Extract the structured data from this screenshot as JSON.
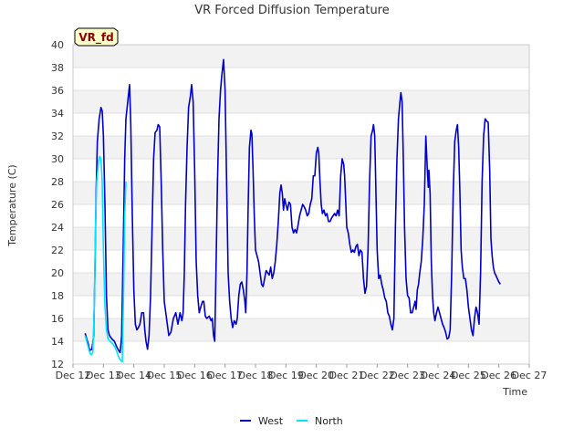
{
  "chart_data": {
    "type": "line",
    "title": "VR Forced Diffusion Temperature",
    "xlabel": "Time",
    "ylabel": "Temperature (C)",
    "badge": "VR_fd",
    "ylim": [
      12,
      40
    ],
    "xlim": [
      12,
      27
    ],
    "x_unit": "day of December",
    "x_ticks": [
      12,
      13,
      14,
      15,
      16,
      17,
      18,
      19,
      20,
      21,
      22,
      23,
      24,
      25,
      26,
      27
    ],
    "x_tick_labels": [
      "Dec 12",
      "Dec 13",
      "Dec 14",
      "Dec 15",
      "Dec 16",
      "Dec 17",
      "Dec 18",
      "Dec 19",
      "Dec 20",
      "Dec 21",
      "Dec 22",
      "Dec 23",
      "Dec 24",
      "Dec 25",
      "Dec 26",
      "Dec 27"
    ],
    "y_ticks": [
      12,
      14,
      16,
      18,
      20,
      22,
      24,
      26,
      28,
      30,
      32,
      34,
      36,
      38,
      40
    ],
    "grid": true,
    "legend_position": "bottom-center",
    "series": [
      {
        "name": "West",
        "color": "#0000cc",
        "points": [
          [
            12.4,
            14.7
          ],
          [
            12.45,
            14.2
          ],
          [
            12.5,
            13.8
          ],
          [
            12.55,
            13.2
          ],
          [
            12.62,
            13.3
          ],
          [
            12.68,
            14.5
          ],
          [
            12.72,
            20.0
          ],
          [
            12.76,
            27.0
          ],
          [
            12.8,
            31.5
          ],
          [
            12.86,
            33.5
          ],
          [
            12.92,
            34.5
          ],
          [
            12.96,
            34.2
          ],
          [
            13.0,
            32.0
          ],
          [
            13.05,
            26.0
          ],
          [
            13.1,
            18.0
          ],
          [
            13.15,
            15.0
          ],
          [
            13.2,
            14.5
          ],
          [
            13.28,
            14.2
          ],
          [
            13.36,
            14.0
          ],
          [
            13.44,
            13.5
          ],
          [
            13.5,
            13.2
          ],
          [
            13.55,
            13.0
          ],
          [
            13.6,
            14.5
          ],
          [
            13.65,
            22.0
          ],
          [
            13.7,
            30.0
          ],
          [
            13.74,
            33.5
          ],
          [
            13.8,
            35.0
          ],
          [
            13.86,
            36.5
          ],
          [
            13.9,
            33.0
          ],
          [
            13.95,
            25.0
          ],
          [
            14.0,
            18.5
          ],
          [
            14.05,
            15.5
          ],
          [
            14.1,
            15.0
          ],
          [
            14.15,
            15.2
          ],
          [
            14.2,
            15.5
          ],
          [
            14.26,
            16.5
          ],
          [
            14.32,
            16.5
          ],
          [
            14.36,
            15.0
          ],
          [
            14.4,
            14.0
          ],
          [
            14.45,
            13.3
          ],
          [
            14.5,
            14.5
          ],
          [
            14.55,
            18.0
          ],
          [
            14.6,
            24.0
          ],
          [
            14.65,
            30.0
          ],
          [
            14.7,
            32.3
          ],
          [
            14.76,
            32.5
          ],
          [
            14.8,
            33.0
          ],
          [
            14.85,
            32.8
          ],
          [
            14.9,
            28.0
          ],
          [
            14.95,
            22.0
          ],
          [
            15.0,
            17.5
          ],
          [
            15.05,
            16.5
          ],
          [
            15.1,
            15.5
          ],
          [
            15.15,
            14.5
          ],
          [
            15.22,
            14.8
          ],
          [
            15.3,
            16.0
          ],
          [
            15.38,
            16.5
          ],
          [
            15.45,
            15.5
          ],
          [
            15.52,
            16.5
          ],
          [
            15.58,
            15.8
          ],
          [
            15.62,
            16.5
          ],
          [
            15.66,
            20.0
          ],
          [
            15.7,
            26.0
          ],
          [
            15.75,
            31.0
          ],
          [
            15.8,
            34.5
          ],
          [
            15.86,
            35.5
          ],
          [
            15.9,
            36.5
          ],
          [
            15.95,
            35.0
          ],
          [
            16.0,
            29.0
          ],
          [
            16.05,
            21.0
          ],
          [
            16.1,
            18.0
          ],
          [
            16.15,
            16.5
          ],
          [
            16.2,
            17.0
          ],
          [
            16.26,
            17.5
          ],
          [
            16.3,
            17.5
          ],
          [
            16.35,
            16.2
          ],
          [
            16.4,
            16.0
          ],
          [
            16.48,
            16.2
          ],
          [
            16.54,
            15.8
          ],
          [
            16.58,
            16.0
          ],
          [
            16.62,
            14.5
          ],
          [
            16.66,
            14.0
          ],
          [
            16.7,
            20.0
          ],
          [
            16.75,
            28.0
          ],
          [
            16.8,
            33.5
          ],
          [
            16.85,
            36.0
          ],
          [
            16.9,
            37.5
          ],
          [
            16.95,
            38.7
          ],
          [
            17.0,
            36.0
          ],
          [
            17.05,
            28.0
          ],
          [
            17.1,
            20.0
          ],
          [
            17.15,
            17.5
          ],
          [
            17.2,
            16.0
          ],
          [
            17.25,
            15.2
          ],
          [
            17.3,
            15.8
          ],
          [
            17.36,
            15.5
          ],
          [
            17.4,
            16.0
          ],
          [
            17.45,
            18.0
          ],
          [
            17.5,
            19.0
          ],
          [
            17.55,
            19.2
          ],
          [
            17.6,
            18.5
          ],
          [
            17.65,
            17.5
          ],
          [
            17.68,
            16.5
          ],
          [
            17.72,
            20.0
          ],
          [
            17.76,
            26.0
          ],
          [
            17.8,
            31.0
          ],
          [
            17.85,
            32.5
          ],
          [
            17.88,
            32.2
          ],
          [
            17.92,
            29.0
          ],
          [
            17.96,
            25.0
          ],
          [
            18.0,
            22.0
          ],
          [
            18.05,
            21.5
          ],
          [
            18.1,
            21.0
          ],
          [
            18.15,
            20.0
          ],
          [
            18.2,
            19.0
          ],
          [
            18.25,
            18.8
          ],
          [
            18.3,
            19.5
          ],
          [
            18.35,
            20.2
          ],
          [
            18.4,
            20.0
          ],
          [
            18.45,
            19.8
          ],
          [
            18.5,
            20.5
          ],
          [
            18.55,
            19.5
          ],
          [
            18.6,
            20.0
          ],
          [
            18.65,
            21.0
          ],
          [
            18.7,
            22.5
          ],
          [
            18.75,
            24.5
          ],
          [
            18.8,
            27.0
          ],
          [
            18.84,
            27.7
          ],
          [
            18.88,
            27.0
          ],
          [
            18.92,
            25.5
          ],
          [
            18.96,
            26.5
          ],
          [
            19.0,
            26.0
          ],
          [
            19.05,
            25.5
          ],
          [
            19.1,
            26.2
          ],
          [
            19.15,
            26.0
          ],
          [
            19.2,
            24.0
          ],
          [
            19.25,
            23.5
          ],
          [
            19.3,
            23.8
          ],
          [
            19.35,
            23.5
          ],
          [
            19.4,
            24.2
          ],
          [
            19.45,
            25.0
          ],
          [
            19.5,
            25.5
          ],
          [
            19.55,
            26.0
          ],
          [
            19.6,
            25.8
          ],
          [
            19.65,
            25.5
          ],
          [
            19.7,
            25.0
          ],
          [
            19.75,
            25.2
          ],
          [
            19.8,
            26.0
          ],
          [
            19.85,
            26.5
          ],
          [
            19.9,
            28.5
          ],
          [
            19.95,
            28.5
          ],
          [
            20.0,
            30.5
          ],
          [
            20.05,
            31.0
          ],
          [
            20.08,
            30.5
          ],
          [
            20.12,
            28.0
          ],
          [
            20.16,
            26.0
          ],
          [
            20.2,
            25.2
          ],
          [
            20.25,
            25.5
          ],
          [
            20.3,
            25.0
          ],
          [
            20.35,
            25.2
          ],
          [
            20.4,
            24.5
          ],
          [
            20.45,
            24.5
          ],
          [
            20.5,
            24.8
          ],
          [
            20.55,
            25.0
          ],
          [
            20.6,
            25.2
          ],
          [
            20.65,
            25.0
          ],
          [
            20.7,
            25.5
          ],
          [
            20.75,
            25.0
          ],
          [
            20.8,
            28.5
          ],
          [
            20.85,
            30.0
          ],
          [
            20.9,
            29.5
          ],
          [
            20.93,
            28.5
          ],
          [
            20.97,
            26.0
          ],
          [
            21.0,
            24.0
          ],
          [
            21.05,
            23.5
          ],
          [
            21.1,
            22.5
          ],
          [
            21.15,
            21.8
          ],
          [
            21.2,
            22.0
          ],
          [
            21.25,
            21.8
          ],
          [
            21.3,
            22.3
          ],
          [
            21.35,
            22.5
          ],
          [
            21.4,
            21.5
          ],
          [
            21.45,
            22.0
          ],
          [
            21.5,
            21.8
          ],
          [
            21.55,
            19.5
          ],
          [
            21.6,
            18.2
          ],
          [
            21.65,
            18.8
          ],
          [
            21.7,
            22.0
          ],
          [
            21.75,
            28.0
          ],
          [
            21.8,
            32.0
          ],
          [
            21.85,
            32.5
          ],
          [
            21.88,
            33.0
          ],
          [
            21.92,
            32.0
          ],
          [
            21.96,
            27.0
          ],
          [
            22.0,
            22.0
          ],
          [
            22.05,
            19.5
          ],
          [
            22.1,
            19.8
          ],
          [
            22.15,
            19.0
          ],
          [
            22.2,
            18.5
          ],
          [
            22.25,
            17.8
          ],
          [
            22.3,
            17.5
          ],
          [
            22.35,
            16.5
          ],
          [
            22.4,
            16.2
          ],
          [
            22.45,
            15.5
          ],
          [
            22.5,
            15.0
          ],
          [
            22.55,
            16.0
          ],
          [
            22.6,
            24.0
          ],
          [
            22.65,
            30.0
          ],
          [
            22.7,
            33.5
          ],
          [
            22.75,
            35.0
          ],
          [
            22.78,
            35.8
          ],
          [
            22.82,
            35.0
          ],
          [
            22.86,
            30.0
          ],
          [
            22.9,
            24.0
          ],
          [
            22.95,
            19.5
          ],
          [
            23.0,
            18.0
          ],
          [
            23.05,
            17.8
          ],
          [
            23.1,
            16.5
          ],
          [
            23.15,
            16.5
          ],
          [
            23.2,
            17.0
          ],
          [
            23.25,
            17.5
          ],
          [
            23.28,
            16.8
          ],
          [
            23.32,
            18.5
          ],
          [
            23.36,
            19.0
          ],
          [
            23.4,
            20.0
          ],
          [
            23.45,
            21.0
          ],
          [
            23.5,
            23.0
          ],
          [
            23.55,
            26.0
          ],
          [
            23.6,
            32.0
          ],
          [
            23.65,
            29.0
          ],
          [
            23.68,
            27.5
          ],
          [
            23.7,
            29.0
          ],
          [
            23.74,
            27.0
          ],
          [
            23.78,
            21.0
          ],
          [
            23.82,
            18.0
          ],
          [
            23.86,
            16.5
          ],
          [
            23.9,
            15.8
          ],
          [
            23.95,
            16.5
          ],
          [
            24.0,
            17.0
          ],
          [
            24.05,
            16.5
          ],
          [
            24.1,
            16.0
          ],
          [
            24.15,
            15.5
          ],
          [
            24.2,
            15.2
          ],
          [
            24.25,
            14.8
          ],
          [
            24.3,
            14.2
          ],
          [
            24.35,
            14.3
          ],
          [
            24.4,
            15.0
          ],
          [
            24.45,
            20.0
          ],
          [
            24.5,
            27.0
          ],
          [
            24.55,
            31.5
          ],
          [
            24.6,
            32.5
          ],
          [
            24.64,
            33.0
          ],
          [
            24.68,
            31.0
          ],
          [
            24.72,
            27.0
          ],
          [
            24.76,
            22.0
          ],
          [
            24.8,
            20.5
          ],
          [
            24.85,
            19.5
          ],
          [
            24.9,
            19.5
          ],
          [
            24.95,
            18.5
          ],
          [
            25.0,
            17.0
          ],
          [
            25.05,
            16.0
          ],
          [
            25.1,
            15.0
          ],
          [
            25.15,
            14.5
          ],
          [
            25.2,
            16.0
          ],
          [
            25.25,
            17.0
          ],
          [
            25.3,
            16.5
          ],
          [
            25.35,
            15.5
          ],
          [
            25.4,
            20.0
          ],
          [
            25.45,
            28.0
          ],
          [
            25.5,
            32.0
          ],
          [
            25.55,
            33.5
          ],
          [
            25.6,
            33.3
          ],
          [
            25.65,
            33.2
          ],
          [
            25.7,
            29.0
          ],
          [
            25.74,
            23.0
          ],
          [
            25.78,
            21.5
          ],
          [
            25.82,
            20.5
          ],
          [
            25.86,
            20.0
          ],
          [
            25.9,
            19.8
          ],
          [
            25.95,
            19.5
          ],
          [
            26.0,
            19.2
          ],
          [
            26.05,
            19.0
          ]
        ]
      },
      {
        "name": "North",
        "color": "#00e5ff",
        "points": [
          [
            12.4,
            14.5
          ],
          [
            12.45,
            14.0
          ],
          [
            12.5,
            13.5
          ],
          [
            12.55,
            13.0
          ],
          [
            12.6,
            12.8
          ],
          [
            12.65,
            13.0
          ],
          [
            12.7,
            17.0
          ],
          [
            12.74,
            24.0
          ],
          [
            12.78,
            28.0
          ],
          [
            12.84,
            29.8
          ],
          [
            12.88,
            30.2
          ],
          [
            12.92,
            30.0
          ],
          [
            12.96,
            28.0
          ],
          [
            13.0,
            22.0
          ],
          [
            13.05,
            17.0
          ],
          [
            13.1,
            15.0
          ],
          [
            13.15,
            14.2
          ],
          [
            13.22,
            14.0
          ],
          [
            13.3,
            13.8
          ],
          [
            13.38,
            13.5
          ],
          [
            13.45,
            13.0
          ],
          [
            13.52,
            12.5
          ],
          [
            13.58,
            12.3
          ],
          [
            13.62,
            12.2
          ],
          [
            13.66,
            18.0
          ],
          [
            13.7,
            25.0
          ],
          [
            13.74,
            28.0
          ]
        ]
      }
    ]
  }
}
